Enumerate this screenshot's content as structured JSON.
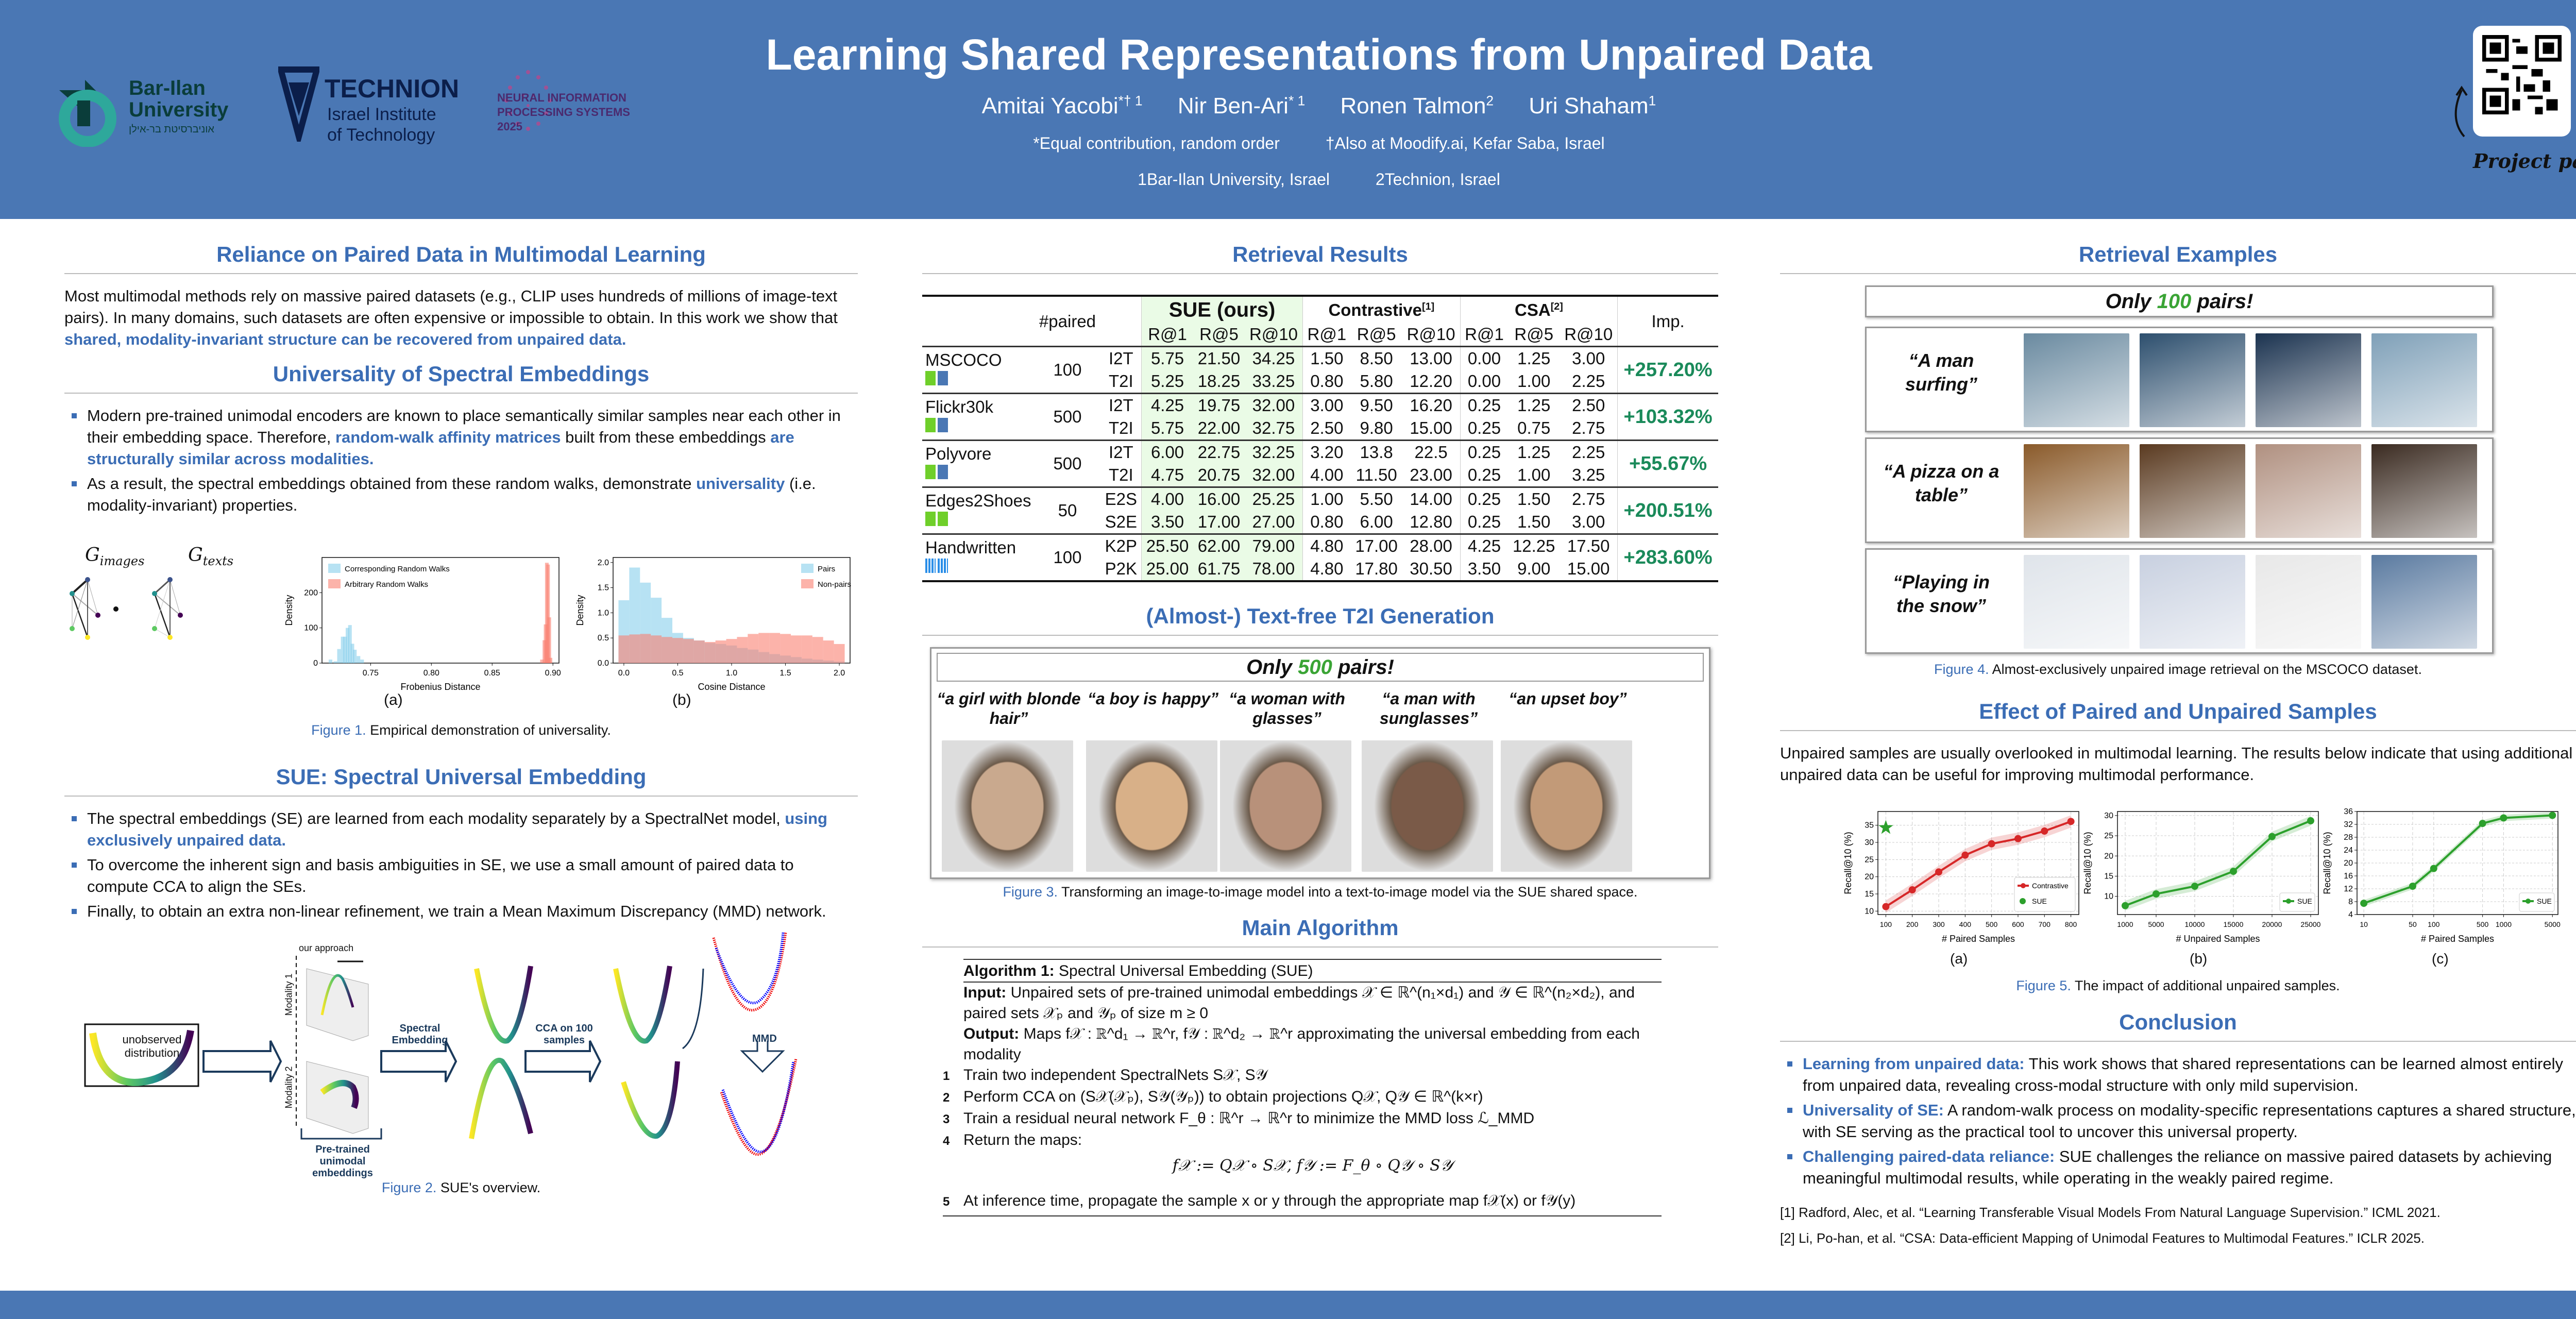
{
  "header": {
    "title": "Learning Shared Representations from Unpaired Data",
    "authors": [
      {
        "name": "Amitai Yacobi",
        "sup": "*† 1"
      },
      {
        "name": "Nir Ben-Ari",
        "sup": "* 1"
      },
      {
        "name": "Ronen Talmon",
        "sup": "2"
      },
      {
        "name": "Uri Shaham",
        "sup": "1"
      }
    ],
    "notes": [
      "*Equal contribution, random order",
      "†Also at Moodify.ai, Kefar Saba, Israel"
    ],
    "affiliations": [
      "1Bar-Ilan University, Israel",
      "2Technion, Israel"
    ],
    "logos": {
      "barilan": "Bar-Ilan University",
      "barilan_he": "אוניברסיטת בר-אילן",
      "technion": "TECHNION",
      "technion_sub1": "Israel Institute",
      "technion_sub2": "of Technology",
      "neurips1": "NEURAL INFORMATION",
      "neurips2": "PROCESSING SYSTEMS",
      "neurips3": "2025"
    },
    "project_page": "Project page"
  },
  "left": {
    "s1_title": "Reliance on Paired Data in Multimodal Learning",
    "s1_text": "Most multimodal methods rely on massive paired datasets (e.g., CLIP uses hundreds of millions of image-text pairs).  In many domains, such datasets are often expensive or impossible to obtain.  In this work we show that ",
    "s1_highlight": "shared, modality-invariant structure can be recovered from unpaired data.",
    "s2_title": "Universality of Spectral Embeddings",
    "s2_b1a": "Modern pre-trained unimodal encoders are known to place semantically similar samples near each other in their embedding space. Therefore, ",
    "s2_b1h": "random-walk affinity matrices",
    "s2_b1b": " built from these embeddings ",
    "s2_b1h2": "are structurally similar across modalities.",
    "s2_b2a": "As a result, the spectral embeddings obtained from these random walks, demonstrate ",
    "s2_b2h": "universality",
    "s2_b2b": " (i.e. modality-invariant) properties.",
    "fig1": {
      "g_images": "G",
      "g_images_sub": "images",
      "g_texts": "G",
      "g_texts_sub": "texts",
      "label_a": "(a)",
      "label_b": "(b)",
      "cap_label": "Figure 1.",
      "cap_text": " Empirical demonstration of universality."
    },
    "s3_title": "SUE: Spectral Universal Embedding",
    "s3_b1a": "The spectral embeddings (SE) are learned from each modality separately by a SpectralNet model, ",
    "s3_b1h": "using exclusively unpaired data.",
    "s3_b2": "To overcome the inherent sign and basis ambiguities in SE, we use a small amount of paired data to compute CCA to align the SEs.",
    "s3_b3": "Finally, to obtain an extra non-linear refinement, we train a Mean Maximum Discrepancy (MMD) network.",
    "fig2": {
      "unobserved": "unobserved distribution",
      "our_approach": "our approach",
      "modality1": "Modality 1",
      "modality2": "Modality 2",
      "pretrained": "Pre-trained unimodal embeddings",
      "spectral": "Spectral Embedding",
      "cca": "CCA on 100 samples",
      "mmd": "MMD",
      "cap_label": "Figure 2.",
      "cap_text": " SUE's overview."
    }
  },
  "middle": {
    "s1_title": "Retrieval Results",
    "table": {
      "paired_header": "#paired",
      "groups": [
        "SUE (ours)",
        "Contrastive",
        "CSA"
      ],
      "group_refs": [
        "",
        "[1]",
        "[2]"
      ],
      "metrics": [
        "R@1",
        "R@5",
        "R@10",
        "R@1",
        "R@5",
        "R@10",
        "R@1",
        "R@5",
        "R@10"
      ],
      "imp_header": "Imp.",
      "rows": [
        {
          "dataset": "MSCOCO",
          "icons": [
            "image",
            "text"
          ],
          "paired": "100",
          "imp": "+257.20%",
          "sub": [
            {
              "dir": "I2T",
              "vals": [
                "5.75",
                "21.50",
                "34.25",
                "1.50",
                "8.50",
                "13.00",
                "0.00",
                "1.25",
                "3.00"
              ]
            },
            {
              "dir": "T2I",
              "vals": [
                "5.25",
                "18.25",
                "33.25",
                "0.80",
                "5.80",
                "12.20",
                "0.00",
                "1.00",
                "2.25"
              ]
            }
          ]
        },
        {
          "dataset": "Flickr30k",
          "icons": [
            "image",
            "text"
          ],
          "paired": "500",
          "imp": "+103.32%",
          "sub": [
            {
              "dir": "I2T",
              "vals": [
                "4.25",
                "19.75",
                "32.00",
                "3.00",
                "9.50",
                "16.20",
                "0.25",
                "1.25",
                "2.50"
              ]
            },
            {
              "dir": "T2I",
              "vals": [
                "5.75",
                "22.00",
                "32.75",
                "2.50",
                "9.80",
                "15.00",
                "0.25",
                "0.75",
                "2.75"
              ]
            }
          ]
        },
        {
          "dataset": "Polyvore",
          "icons": [
            "image",
            "text"
          ],
          "paired": "500",
          "imp": "+55.67%",
          "sub": [
            {
              "dir": "I2T",
              "vals": [
                "6.00",
                "22.75",
                "32.25",
                "3.20",
                "13.8",
                "22.5",
                "0.25",
                "1.25",
                "2.25"
              ]
            },
            {
              "dir": "T2I",
              "vals": [
                "4.75",
                "20.75",
                "32.00",
                "4.00",
                "11.50",
                "23.00",
                "0.25",
                "1.00",
                "3.25"
              ]
            }
          ]
        },
        {
          "dataset": "Edges2Shoes",
          "icons": [
            "image",
            "image"
          ],
          "paired": "50",
          "imp": "+200.51%",
          "sub": [
            {
              "dir": "E2S",
              "vals": [
                "4.00",
                "16.00",
                "25.25",
                "1.00",
                "5.50",
                "14.00",
                "0.25",
                "1.50",
                "2.75"
              ]
            },
            {
              "dir": "S2E",
              "vals": [
                "3.50",
                "17.00",
                "27.00",
                "0.80",
                "6.00",
                "12.80",
                "0.25",
                "1.50",
                "3.00"
              ]
            }
          ]
        },
        {
          "dataset": "Handwritten",
          "icons": [
            "grid",
            "grid"
          ],
          "paired": "100",
          "imp": "+283.60%",
          "sub": [
            {
              "dir": "K2P",
              "vals": [
                "25.50",
                "62.00",
                "79.00",
                "4.80",
                "17.00",
                "28.00",
                "4.25",
                "12.25",
                "17.50"
              ]
            },
            {
              "dir": "P2K",
              "vals": [
                "25.00",
                "61.75",
                "78.00",
                "4.80",
                "17.80",
                "30.50",
                "3.50",
                "9.00",
                "15.00"
              ]
            }
          ]
        }
      ]
    },
    "s2_title": "(Almost-) Text-free T2I Generation",
    "t2i": {
      "banner_a": "Only ",
      "banner_n": "500",
      "banner_b": " pairs!",
      "prompts": [
        "“a girl with blonde hair”",
        "“a boy is happy”",
        "“a woman with glasses”",
        "“a man with sunglasses”",
        "“an upset boy”"
      ],
      "cap_label": "Figure 3.",
      "cap_text": " Transforming an image-to-image model into a text-to-image model via the SUE shared space."
    },
    "s3_title": "Main Algorithm",
    "alg": {
      "title_b": "Algorithm 1:",
      "title": " Spectral Universal Embedding (SUE)",
      "input_b": "Input:",
      "input": " Unpaired sets of pre-trained unimodal embeddings 𝒳 ∈ ℝ^(n₁×d₁) and 𝒴 ∈ ℝ^(n₂×d₂), and paired sets 𝒳ₚ and 𝒴ₚ of size m ≥ 0",
      "output_b": "Output:",
      "output": " Maps f𝒳 : ℝ^d₁ → ℝ^r,   f𝒴 : ℝ^d₂ → ℝ^r approximating the universal embedding from each modality",
      "steps": [
        "Train two independent SpectralNets S𝒳, S𝒴",
        "Perform CCA on (S𝒳(𝒳ₚ), S𝒴(𝒴ₚ)) to obtain projections Q𝒳, Q𝒴 ∈ ℝ^(k×r)",
        "Train a residual neural network F_θ : ℝ^r → ℝ^r to minimize the MMD loss ℒ_MMD",
        "Return the maps:",
        "At inference time, propagate the sample x or y through the appropriate map f𝒳(x) or f𝒴(y)"
      ],
      "step_nums": [
        "1",
        "2",
        "3",
        "4",
        "5"
      ],
      "formula": "f𝒳 := Q𝒳 ∘ S𝒳,    f𝒴 := F_θ ∘ Q𝒴 ∘ S𝒴"
    }
  },
  "right": {
    "s1_title": "Retrieval Examples",
    "examples": {
      "banner_a": "Only ",
      "banner_n": "100",
      "banner_b": " pairs!",
      "queries": [
        "“A man surfing”",
        "“A pizza on a table”",
        "“Playing in the snow”"
      ],
      "cap_label": "Figure 4.",
      "cap_text": " Almost-exclusively unpaired image retrieval on the MSCOCO dataset."
    },
    "s2_title": "Effect of Paired and Unpaired Samples",
    "s2_text": "Unpaired samples are usually overlooked in multimodal learning.  The results below indicate that using additional unpaired data can be useful for improving multimodal performance.",
    "fig5": {
      "labels": [
        "(a)",
        "(b)",
        "(c)"
      ],
      "cap_label": "Figure 5.",
      "cap_text": " The impact of additional unpaired samples."
    },
    "s3_title": "Conclusion",
    "conclusions": [
      {
        "h": "Learning from unpaired data:",
        "t": " This work shows that shared representations can be learned almost entirely from unpaired data, revealing cross-modal structure with only mild supervision."
      },
      {
        "h": "Universality of SE:",
        "t": " A random-walk process on modality-specific representations captures a shared structure, with SE serving as the practical tool to uncover this universal property."
      },
      {
        "h": "Challenging paired-data reliance:",
        "t": " SUE challenges the reliance on massive paired datasets by achieving meaningful multimodal results, while operating in the weakly paired regime."
      }
    ],
    "refs": [
      "[1] Radford, Alec, et al. “Learning Transferable Visual Models From Natural Language Supervision.” ICML 2021.",
      "[2] Li, Po-han, et al. “CSA: Data-efficient Mapping of Unimodal Features to Multimodal Features.” ICLR 2025."
    ]
  },
  "colors": {
    "header": "#4a77b4",
    "accent": "#3b6db5",
    "green": "#2ca02c",
    "red": "#d62728",
    "sue_bg": "#eafbe6",
    "imp": "#1a8a5a"
  },
  "chart_data": [
    {
      "type": "histogram",
      "id": "fig1a",
      "xlabel": "Frobenius Distance",
      "ylabel": "Density",
      "xlim": [
        0.71,
        0.905
      ],
      "ylim": [
        0,
        300
      ],
      "xticks": [
        "0.75",
        "0.80",
        "0.85",
        "0.90"
      ],
      "yticks": [
        "0",
        "100",
        "200"
      ],
      "legend": "top-left",
      "series": [
        {
          "name": "Corresponding Random Walks",
          "color": "#87ceeb",
          "x": [
            0.717,
            0.721,
            0.724,
            0.727,
            0.729,
            0.731,
            0.733,
            0.735,
            0.737,
            0.74,
            0.743
          ],
          "y": [
            10,
            5,
            40,
            75,
            75,
            100,
            108,
            55,
            38,
            20,
            10
          ]
        },
        {
          "name": "Arbitrary Random Walks",
          "color": "#fa8072",
          "x": [
            0.891,
            0.893,
            0.894,
            0.895,
            0.896,
            0.897,
            0.898
          ],
          "y": [
            10,
            65,
            110,
            285,
            280,
            130,
            15
          ]
        }
      ]
    },
    {
      "type": "histogram",
      "id": "fig1b",
      "xlabel": "Cosine Distance",
      "ylabel": "Density",
      "xlim": [
        -0.1,
        2.1
      ],
      "ylim": [
        0,
        2.1
      ],
      "xticks": [
        "0.0",
        "0.5",
        "1.0",
        "1.5",
        "2.0"
      ],
      "yticks": [
        "0.0",
        "0.5",
        "1.0",
        "1.5",
        "2.0"
      ],
      "legend": "top-right",
      "series": [
        {
          "name": "Pairs",
          "color": "#87ceeb",
          "x": [
            0.0,
            0.1,
            0.2,
            0.3,
            0.4,
            0.5,
            0.6,
            0.7,
            0.8,
            0.9,
            1.0,
            1.1,
            1.2,
            1.3,
            1.4,
            1.5,
            1.6,
            1.7,
            1.8,
            1.9,
            2.0
          ],
          "y": [
            1.25,
            1.9,
            1.6,
            1.3,
            0.9,
            0.6,
            0.5,
            0.45,
            0.4,
            0.38,
            0.35,
            0.3,
            0.27,
            0.22,
            0.18,
            0.15,
            0.12,
            0.09,
            0.07,
            0.05,
            0.03
          ]
        },
        {
          "name": "Non-pairs",
          "color": "#fa8072",
          "x": [
            0.0,
            0.1,
            0.2,
            0.3,
            0.4,
            0.5,
            0.6,
            0.7,
            0.8,
            0.9,
            1.0,
            1.1,
            1.2,
            1.3,
            1.4,
            1.5,
            1.6,
            1.7,
            1.8,
            1.9,
            2.0
          ],
          "y": [
            0.55,
            0.57,
            0.58,
            0.55,
            0.52,
            0.5,
            0.48,
            0.45,
            0.42,
            0.45,
            0.48,
            0.52,
            0.58,
            0.6,
            0.6,
            0.58,
            0.55,
            0.55,
            0.52,
            0.45,
            0.38
          ]
        }
      ]
    },
    {
      "type": "line",
      "id": "fig5a",
      "xlabel": "# Paired Samples",
      "ylabel": "Recall@10 (%)",
      "xscale": "linear",
      "xlim": [
        70,
        830
      ],
      "ylim": [
        9,
        39
      ],
      "xticks": [
        100,
        200,
        300,
        400,
        500,
        600,
        700,
        800
      ],
      "yticks": [
        10,
        15,
        20,
        25,
        30,
        35
      ],
      "legend": "bottom-right",
      "grid": true,
      "series": [
        {
          "name": "Contrastive",
          "color": "#d62728",
          "marker": "circle",
          "x": [
            100,
            200,
            300,
            400,
            500,
            600,
            700,
            800
          ],
          "y": [
            11.3,
            16.2,
            21.4,
            26.3,
            29.6,
            31.1,
            33.3,
            36.1
          ],
          "band": 1.8
        },
        {
          "name": "SUE",
          "color": "#2ca02c",
          "marker": "star",
          "x": [
            100
          ],
          "y": [
            34.3
          ]
        }
      ]
    },
    {
      "type": "line",
      "id": "fig5b",
      "xlabel": "# Unpaired Samples",
      "ylabel": "Recall@10 (%)",
      "xscale": "linear",
      "xlim": [
        0,
        26000
      ],
      "ylim": [
        5.5,
        31
      ],
      "xticks": [
        1000,
        5000,
        10000,
        15000,
        20000,
        25000
      ],
      "yticks": [
        10,
        15,
        20,
        25,
        30
      ],
      "legend": "bottom-right",
      "grid": true,
      "series": [
        {
          "name": "SUE",
          "color": "#2ca02c",
          "marker": "circle",
          "x": [
            1000,
            5000,
            10000,
            15000,
            20000,
            25000
          ],
          "y": [
            7.7,
            10.6,
            12.5,
            16.2,
            24.8,
            28.7
          ],
          "band": 1.2
        }
      ]
    },
    {
      "type": "line",
      "id": "fig5c",
      "xlabel": "# Paired Samples",
      "ylabel": "Recall@10 (%)",
      "xscale": "log",
      "xlim": [
        8,
        6000
      ],
      "ylim": [
        4,
        36
      ],
      "xticks": [
        10,
        50,
        100,
        500,
        1000,
        5000
      ],
      "yticks": [
        4,
        8,
        12,
        16,
        20,
        24,
        28,
        32,
        36
      ],
      "legend": "bottom-right",
      "grid": true,
      "series": [
        {
          "name": "SUE",
          "color": "#2ca02c",
          "marker": "circle",
          "x": [
            10,
            50,
            100,
            500,
            1000,
            5000
          ],
          "y": [
            7.5,
            12.8,
            18.3,
            32.3,
            34.0,
            34.8
          ],
          "band": 1.0
        }
      ]
    }
  ]
}
